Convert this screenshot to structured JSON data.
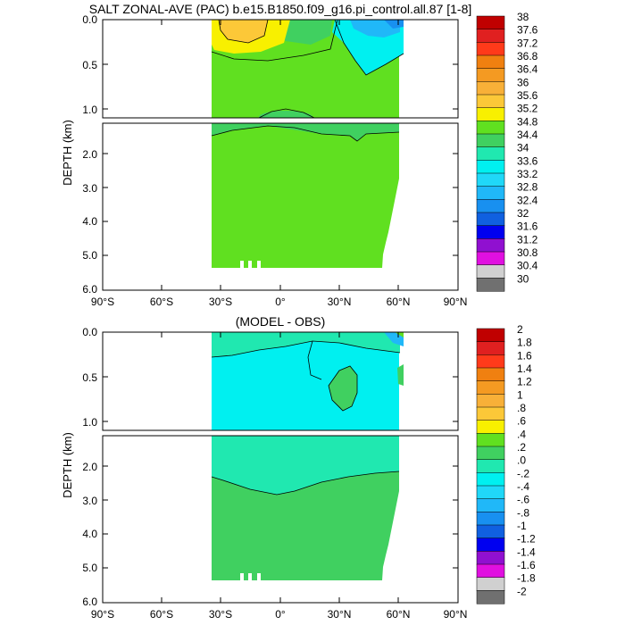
{
  "chart_data": [
    {
      "type": "heatmap",
      "title": "SALT ZONAL-AVE (PAC) b.e15.B1850.f09_g16.pi_control.all.87 [1-8]",
      "xlabel": "",
      "ylabel": "DEPTH (km)",
      "xlim": [
        -90,
        90
      ],
      "ylim_upper": [
        0.0,
        1.1
      ],
      "ylim_lower": [
        1.1,
        6.0
      ],
      "x_ticks": [
        "90°S",
        "60°S",
        "30°S",
        "0°",
        "30°N",
        "60°N",
        "90°N"
      ],
      "y_ticks_upper": [
        "0.0",
        "0.5",
        "1.0"
      ],
      "y_ticks_lower": [
        "2.0",
        "3.0",
        "4.0",
        "5.0",
        "6.0"
      ],
      "data_extent": {
        "lat_min": -34,
        "lat_max": 62,
        "max_depth_km": 5.4
      },
      "colorbar_labels": [
        "38",
        "37.6",
        "37.2",
        "36.8",
        "36.4",
        "36",
        "35.6",
        "35.2",
        "34.8",
        "34.4",
        "34",
        "33.6",
        "33.2",
        "32.8",
        "32.4",
        "32",
        "31.6",
        "31.2",
        "30.8",
        "30.4",
        "30"
      ],
      "colors": [
        "#c00000",
        "#e02020",
        "#ff3a1a",
        "#f08010",
        "#f49a22",
        "#f8b038",
        "#fcc838",
        "#f8f000",
        "#60e020",
        "#40d060",
        "#20e8b0",
        "#00f0f0",
        "#20d8f8",
        "#20b8f8",
        "#1890f0",
        "#1060e0",
        "#0000f0",
        "#9010d0",
        "#e010e0",
        "#d0d0d0",
        "#707070"
      ],
      "field_samples": [
        {
          "lat": -25,
          "depth_km": 0.05,
          "value": 35.2
        },
        {
          "lat": 0,
          "depth_km": 0.2,
          "value": 34.6
        },
        {
          "lat": 50,
          "depth_km": 0.1,
          "value": 33.4
        },
        {
          "lat": 0,
          "depth_km": 3.0,
          "value": 34.6
        }
      ]
    },
    {
      "type": "heatmap",
      "title": "(MODEL - OBS)",
      "xlabel": "",
      "ylabel": "DEPTH (km)",
      "xlim": [
        -90,
        90
      ],
      "ylim_upper": [
        0.0,
        1.1
      ],
      "ylim_lower": [
        1.1,
        6.0
      ],
      "x_ticks": [
        "90°S",
        "60°S",
        "30°S",
        "0°",
        "30°N",
        "60°N",
        "90°N"
      ],
      "y_ticks_upper": [
        "0.0",
        "0.5",
        "1.0"
      ],
      "y_ticks_lower": [
        "2.0",
        "3.0",
        "4.0",
        "5.0",
        "6.0"
      ],
      "data_extent": {
        "lat_min": -34,
        "lat_max": 62,
        "max_depth_km": 5.4
      },
      "colorbar_labels": [
        "2",
        "1.8",
        "1.6",
        "1.4",
        "1.2",
        "1",
        ".8",
        ".6",
        ".4",
        ".2",
        ".0",
        "-.2",
        "-.4",
        "-.6",
        "-.8",
        "-1",
        "-1.2",
        "-1.4",
        "-1.6",
        "-1.8",
        "-2"
      ],
      "colors": [
        "#c00000",
        "#e02020",
        "#ff3a1a",
        "#f08010",
        "#f49a22",
        "#f8b038",
        "#fcc838",
        "#f8f000",
        "#60e020",
        "#40d060",
        "#20e8b0",
        "#00f0f0",
        "#20d8f8",
        "#20b8f8",
        "#1890f0",
        "#1060e0",
        "#0000f0",
        "#9010d0",
        "#e010e0",
        "#d0d0d0",
        "#707070"
      ],
      "field_samples": [
        {
          "lat": 0,
          "depth_km": 0.3,
          "value": -0.1
        },
        {
          "lat": 40,
          "depth_km": 0.65,
          "value": 0.1
        },
        {
          "lat": 0,
          "depth_km": 3.5,
          "value": 0.1
        }
      ]
    }
  ]
}
